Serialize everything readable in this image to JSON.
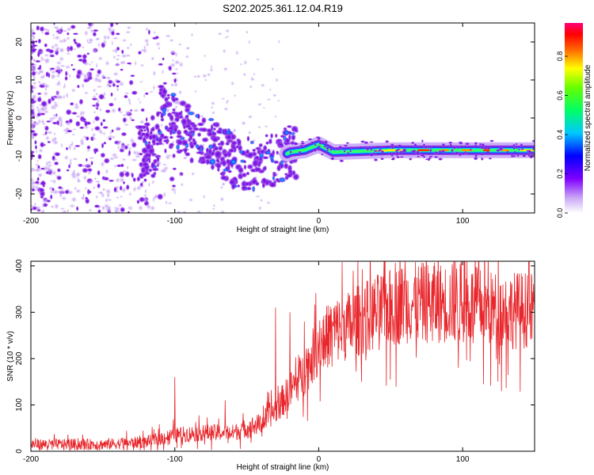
{
  "figure_title": "S202.2025.361.12.04.R19",
  "chart_data": [
    {
      "type": "heatmap",
      "title": "S202.2025.361.12.04.R19",
      "xlabel": "Height of straight line (km)",
      "ylabel": "Frequency (Hz)",
      "xlim": [
        -200,
        150
      ],
      "ylim": [
        -25,
        25
      ],
      "x_ticks": [
        -200,
        -100,
        0,
        100
      ],
      "x_tick_labels": [
        "-200",
        "-100",
        "0",
        "100"
      ],
      "y_ticks": [
        -20,
        -10,
        0,
        10,
        20
      ],
      "y_tick_labels": [
        "-20",
        "-10",
        "0",
        "10",
        "20"
      ],
      "colorbar": {
        "label": "Normalized spectral amplitude",
        "range": [
          0,
          0.97
        ],
        "ticks": [
          0.0,
          0.2,
          0.4,
          0.6,
          0.8
        ],
        "tick_labels": [
          "0.0",
          "0.2",
          "0.4",
          "0.6",
          "0.8"
        ],
        "colormap": "rainbow (white -> violet -> blue -> cyan -> green -> yellow -> red -> magenta)"
      },
      "signal_track": [
        {
          "x": -110,
          "y": 1.5
        },
        {
          "x": -100,
          "y": -1
        },
        {
          "x": -90,
          "y": -4
        },
        {
          "x": -80,
          "y": -6
        },
        {
          "x": -70,
          "y": -8
        },
        {
          "x": -60,
          "y": -11
        },
        {
          "x": -50,
          "y": -12
        },
        {
          "x": -40,
          "y": -11.5
        },
        {
          "x": -30,
          "y": -11
        },
        {
          "x": -20,
          "y": -9
        },
        {
          "x": -10,
          "y": -8.5
        },
        {
          "x": 0,
          "y": -7
        },
        {
          "x": 10,
          "y": -9
        },
        {
          "x": 50,
          "y": -8.5
        },
        {
          "x": 100,
          "y": -8.5
        },
        {
          "x": 150,
          "y": -8.5
        }
      ]
    },
    {
      "type": "line",
      "xlabel": "Height of straight line (km)",
      "ylabel": "SNR (10 * v/v)",
      "xlim": [
        -200,
        150
      ],
      "ylim": [
        0,
        410
      ],
      "x_ticks": [
        -200,
        -100,
        0,
        100
      ],
      "x_tick_labels": [
        "-200",
        "-100",
        "0",
        "100"
      ],
      "y_ticks": [
        0,
        100,
        200,
        300,
        400
      ],
      "y_tick_labels": [
        "0",
        "100",
        "200",
        "300",
        "400"
      ],
      "series": [
        {
          "name": "SNR",
          "color": "#e8262b",
          "trend": [
            {
              "x": -200,
              "y": 15
            },
            {
              "x": -150,
              "y": 15
            },
            {
              "x": -120,
              "y": 20
            },
            {
              "x": -100,
              "y": 35
            },
            {
              "x": -80,
              "y": 40
            },
            {
              "x": -60,
              "y": 40
            },
            {
              "x": -40,
              "y": 60
            },
            {
              "x": -30,
              "y": 90
            },
            {
              "x": -20,
              "y": 130
            },
            {
              "x": -10,
              "y": 170
            },
            {
              "x": 0,
              "y": 230
            },
            {
              "x": 10,
              "y": 260
            },
            {
              "x": 20,
              "y": 270
            },
            {
              "x": 40,
              "y": 300
            },
            {
              "x": 60,
              "y": 320
            },
            {
              "x": 80,
              "y": 320
            },
            {
              "x": 100,
              "y": 320
            },
            {
              "x": 120,
              "y": 305
            },
            {
              "x": 150,
              "y": 305
            }
          ],
          "spikes": [
            {
              "x": -100,
              "y": 160
            },
            {
              "x": -65,
              "y": 110
            },
            {
              "x": -30,
              "y": 310
            },
            {
              "x": -20,
              "y": 300
            },
            {
              "x": -10,
              "y": 280
            },
            {
              "x": 60,
              "y": 410
            },
            {
              "x": 80,
              "y": 400
            },
            {
              "x": 95,
              "y": 410
            },
            {
              "x": 97,
              "y": 180
            }
          ]
        }
      ]
    }
  ]
}
